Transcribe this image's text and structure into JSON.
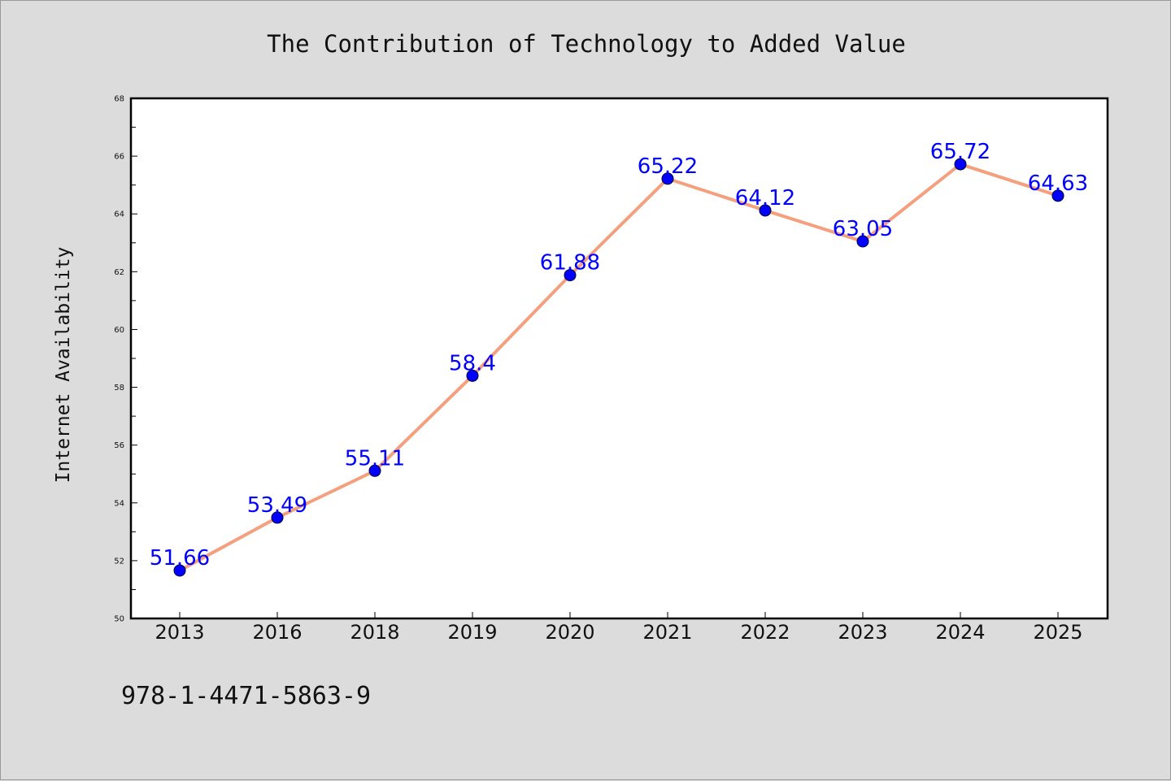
{
  "chart_data": {
    "type": "line",
    "title": "The Contribution of Technology to Added Value",
    "xlabel": "",
    "ylabel": "Internet Availability",
    "categories": [
      "2013",
      "2016",
      "2018",
      "2019",
      "2020",
      "2021",
      "2022",
      "2023",
      "2024",
      "2025"
    ],
    "series": [
      {
        "values": [
          51.66,
          53.49,
          55.11,
          58.4,
          61.88,
          65.22,
          64.12,
          63.05,
          65.72,
          64.63
        ],
        "labels": [
          "51.66",
          "53.49",
          "55.11",
          "58.4",
          "61.88",
          "65.22",
          "64.12",
          "63.05",
          "65.72",
          "64.63"
        ],
        "line_color": "#f4a07e",
        "marker_color": "#0000ff"
      }
    ],
    "ylim": [
      50,
      68
    ],
    "y_major_ticks": [
      50,
      52,
      54,
      56,
      58,
      60,
      62,
      64,
      66,
      68
    ],
    "y_tick_labels": [
      "50",
      "52",
      "54",
      "56",
      "58",
      "60",
      "62",
      "64",
      "66",
      "68"
    ],
    "grid": false,
    "legend": "none",
    "background_color": "#dcdcdc",
    "plot_background_color": "#ffffff"
  },
  "footer": {
    "code": "978-1-4471-5863-9"
  }
}
